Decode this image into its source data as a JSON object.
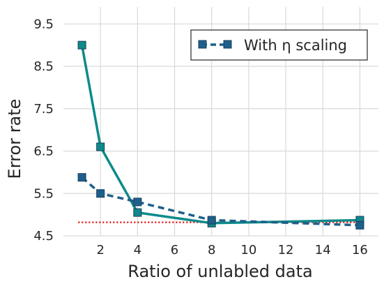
{
  "chart_data": {
    "type": "line",
    "xlabel": "Ratio of unlabled data",
    "ylabel": "Error rate",
    "xlim": [
      0,
      17
    ],
    "ylim": [
      4.5,
      9.9
    ],
    "xticks": [
      2,
      4,
      6,
      8,
      10,
      12,
      14,
      16
    ],
    "yticks": [
      4.5,
      5.5,
      6.5,
      7.5,
      8.5,
      9.5
    ],
    "grid": true,
    "legend": "top-right",
    "series": [
      {
        "name": "With η scaling",
        "style": "dashed",
        "marker": "square",
        "color": "#1f5f8b",
        "x": [
          1,
          2,
          4,
          8,
          16
        ],
        "y": [
          5.88,
          5.5,
          5.3,
          4.87,
          4.75
        ]
      },
      {
        "name": "",
        "style": "solid",
        "marker": "square",
        "color": "#0e8a8a",
        "x": [
          1,
          2,
          4,
          8,
          16
        ],
        "y": [
          9.0,
          6.6,
          5.05,
          4.8,
          4.87
        ]
      },
      {
        "name": "",
        "style": "dotted",
        "marker": "none",
        "color": "#e00000",
        "x": [
          0.8,
          16.2
        ],
        "y": [
          4.82,
          4.82
        ]
      }
    ]
  }
}
